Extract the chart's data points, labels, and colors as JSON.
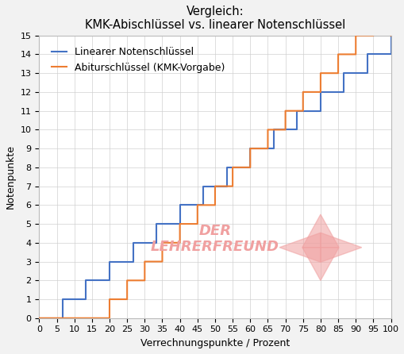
{
  "title": "Vergleich:\nKMK-Abischlüssel vs. linearer Notenschlüssel",
  "xlabel": "Verrechnungspunkte / Prozent",
  "ylabel": "Notenpunkte",
  "legend_linear": "Linearer Notenschlüssel",
  "legend_kmk": "Abiturschlüssel (KMK-Vorgabe)",
  "color_linear": "#4472C4",
  "color_kmk": "#ED7D31",
  "background_color": "#F2F2F2",
  "plot_bg_color": "#FFFFFF",
  "xlim": [
    0,
    100
  ],
  "ylim": [
    0,
    15
  ],
  "xticks": [
    0,
    5,
    10,
    15,
    20,
    25,
    30,
    35,
    40,
    45,
    50,
    55,
    60,
    65,
    70,
    75,
    80,
    85,
    90,
    95,
    100
  ],
  "yticks": [
    0,
    1,
    2,
    3,
    4,
    5,
    6,
    7,
    8,
    9,
    10,
    11,
    12,
    13,
    14,
    15
  ],
  "watermark_text": "DER\nLEHRERFREUND",
  "watermark_color": "#F0A0A0",
  "grid_color": "#D0D0D0",
  "line_width": 1.5,
  "title_fontsize": 10.5,
  "axis_label_fontsize": 9,
  "tick_fontsize": 8,
  "legend_fontsize": 9,
  "kmk_thresholds": [
    0,
    20,
    25,
    30,
    35,
    40,
    45,
    50,
    55,
    60,
    65,
    70,
    75,
    80,
    85,
    90,
    95
  ]
}
